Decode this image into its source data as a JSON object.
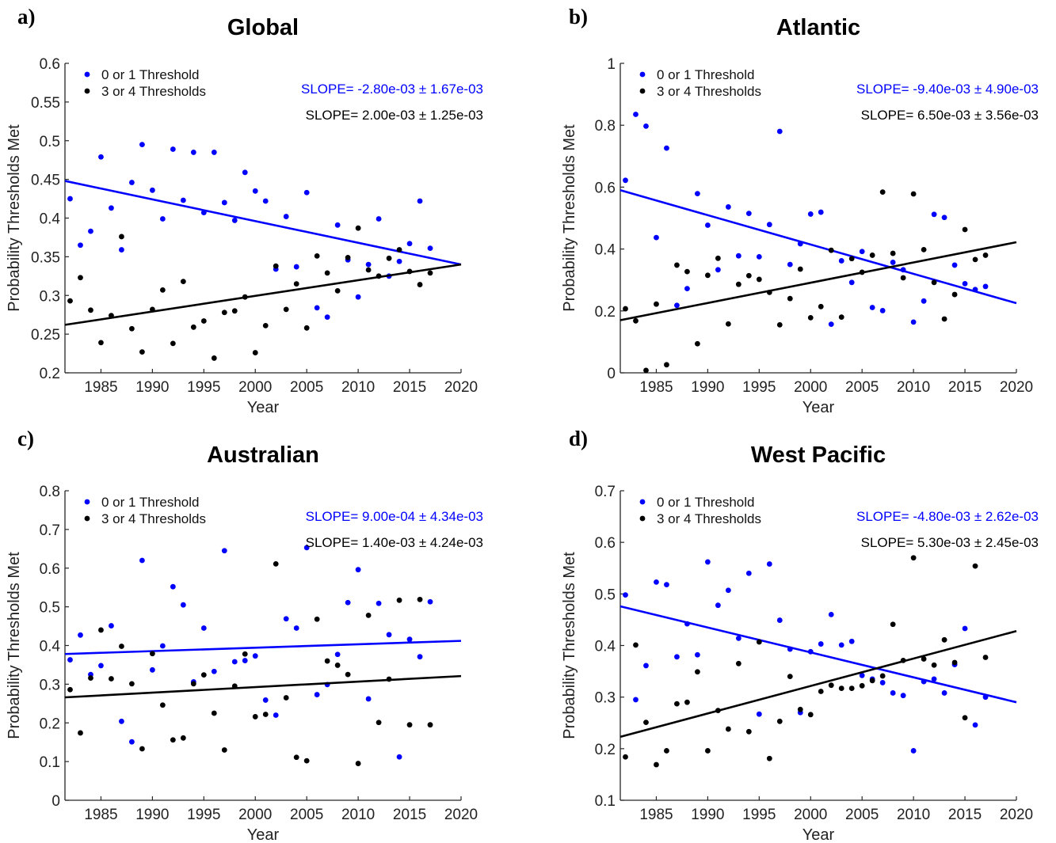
{
  "colors": {
    "blue": "#0000ff",
    "black": "#000000",
    "axis": "#262626",
    "tick_text": "#222222"
  },
  "chart_data": [
    {
      "type": "scatter",
      "panel_label": "a)",
      "title": "Global",
      "xlabel": "Year",
      "ylabel": "Probability Thresholds Met",
      "xlim": [
        1981.5,
        2020
      ],
      "ylim": [
        0.2,
        0.6
      ],
      "xticks": [
        1985,
        1990,
        1995,
        2000,
        2005,
        2010,
        2015,
        2020
      ],
      "yticks": [
        0.2,
        0.25,
        0.3,
        0.35,
        0.4,
        0.45,
        0.5,
        0.55,
        0.6
      ],
      "ytick_labels": [
        "0.2",
        "0.25",
        "0.3",
        "0.35",
        "0.4",
        "0.45",
        "0.5",
        "0.55",
        "0.6"
      ],
      "grid": false,
      "legend_position": "top-left",
      "series": [
        {
          "name": "0 or 1 Threshold",
          "color": "#0000ff",
          "slope_text": "SLOPE= -2.80e-03 ± 1.67e-03",
          "trend": {
            "x": [
              1981.5,
              2020
            ],
            "y": [
              0.448,
              0.34
            ]
          },
          "x": [
            1982,
            1983,
            1984,
            1985,
            1986,
            1987,
            1988,
            1989,
            1990,
            1991,
            1992,
            1993,
            1994,
            1995,
            1996,
            1997,
            1998,
            1999,
            2000,
            2001,
            2002,
            2003,
            2004,
            2005,
            2006,
            2007,
            2008,
            2009,
            2010,
            2011,
            2012,
            2013,
            2014,
            2015,
            2016,
            2017
          ],
          "y": [
            0.425,
            0.365,
            0.383,
            0.479,
            0.413,
            0.359,
            0.446,
            0.495,
            0.436,
            0.399,
            0.489,
            0.423,
            0.485,
            0.407,
            0.485,
            0.42,
            0.397,
            0.459,
            0.435,
            0.422,
            0.334,
            0.402,
            0.337,
            0.433,
            0.284,
            0.272,
            0.391,
            0.346,
            0.298,
            0.34,
            0.399,
            0.325,
            0.344,
            0.367,
            0.422,
            0.361
          ]
        },
        {
          "name": "3 or 4 Thresholds",
          "color": "#000000",
          "slope_text": "SLOPE= 2.00e-03 ± 1.25e-03",
          "trend": {
            "x": [
              1981.5,
              2020
            ],
            "y": [
              0.262,
              0.34
            ]
          },
          "x": [
            1982,
            1983,
            1984,
            1985,
            1986,
            1987,
            1988,
            1989,
            1990,
            1991,
            1992,
            1993,
            1994,
            1995,
            1996,
            1997,
            1998,
            1999,
            2000,
            2001,
            2002,
            2003,
            2004,
            2005,
            2006,
            2007,
            2008,
            2009,
            2010,
            2011,
            2012,
            2013,
            2014,
            2015,
            2016,
            2017
          ],
          "y": [
            0.293,
            0.323,
            0.281,
            0.239,
            0.274,
            0.376,
            0.257,
            0.227,
            0.282,
            0.307,
            0.238,
            0.318,
            0.259,
            0.267,
            0.219,
            0.278,
            0.28,
            0.298,
            0.226,
            0.261,
            0.338,
            0.282,
            0.315,
            0.258,
            0.351,
            0.329,
            0.306,
            0.349,
            0.387,
            0.333,
            0.325,
            0.348,
            0.359,
            0.331,
            0.314,
            0.329
          ]
        }
      ]
    },
    {
      "type": "scatter",
      "panel_label": "b)",
      "title": "Atlantic",
      "xlabel": "Year",
      "ylabel": "Probability Thresholds Met",
      "xlim": [
        1981.5,
        2020
      ],
      "ylim": [
        0,
        1
      ],
      "xticks": [
        1985,
        1990,
        1995,
        2000,
        2005,
        2010,
        2015,
        2020
      ],
      "yticks": [
        0,
        0.2,
        0.4,
        0.6,
        0.8,
        1
      ],
      "ytick_labels": [
        "0",
        "0.2",
        "0.4",
        "0.6",
        "0.8",
        "1"
      ],
      "grid": false,
      "legend_position": "top-left",
      "series": [
        {
          "name": "0 or 1 Threshold",
          "color": "#0000ff",
          "slope_text": "SLOPE= -9.40e-03 ± 4.90e-03",
          "trend": {
            "x": [
              1981.5,
              2020
            ],
            "y": [
              0.59,
              0.225
            ]
          },
          "x": [
            1982,
            1983,
            1984,
            1985,
            1986,
            1987,
            1988,
            1989,
            1990,
            1991,
            1992,
            1993,
            1994,
            1995,
            1996,
            1997,
            1998,
            1999,
            2000,
            2001,
            2002,
            2003,
            2004,
            2005,
            2006,
            2007,
            2008,
            2009,
            2010,
            2011,
            2012,
            2013,
            2014,
            2015,
            2016,
            2017
          ],
          "y": [
            0.622,
            0.835,
            0.797,
            0.437,
            0.726,
            0.218,
            0.272,
            0.579,
            0.477,
            0.333,
            0.536,
            0.378,
            0.515,
            0.375,
            0.479,
            0.78,
            0.35,
            0.417,
            0.513,
            0.519,
            0.157,
            0.362,
            0.292,
            0.392,
            0.211,
            0.201,
            0.357,
            0.333,
            0.164,
            0.232,
            0.512,
            0.502,
            0.348,
            0.288,
            0.269,
            0.279
          ]
        },
        {
          "name": "3 or 4 Thresholds",
          "color": "#000000",
          "slope_text": "SLOPE= 6.50e-03 ± 3.56e-03",
          "trend": {
            "x": [
              1981.5,
              2020
            ],
            "y": [
              0.17,
              0.422
            ]
          },
          "x": [
            1982,
            1983,
            1984,
            1985,
            1986,
            1987,
            1988,
            1989,
            1990,
            1991,
            1992,
            1993,
            1994,
            1995,
            1996,
            1997,
            1998,
            1999,
            2000,
            2001,
            2002,
            2003,
            2004,
            2005,
            2006,
            2007,
            2008,
            2009,
            2010,
            2011,
            2012,
            2013,
            2014,
            2015,
            2016,
            2017
          ],
          "y": [
            0.207,
            0.168,
            0.008,
            0.222,
            0.026,
            0.348,
            0.327,
            0.094,
            0.315,
            0.37,
            0.158,
            0.286,
            0.314,
            0.302,
            0.26,
            0.155,
            0.24,
            0.335,
            0.178,
            0.214,
            0.396,
            0.18,
            0.369,
            0.325,
            0.38,
            0.584,
            0.386,
            0.307,
            0.578,
            0.398,
            0.292,
            0.174,
            0.253,
            0.463,
            0.366,
            0.38
          ]
        }
      ]
    },
    {
      "type": "scatter",
      "panel_label": "c)",
      "title": "Australian",
      "xlabel": "Year",
      "ylabel": "Probability Thresholds Met",
      "xlim": [
        1981.5,
        2020
      ],
      "ylim": [
        0,
        0.8
      ],
      "xticks": [
        1985,
        1990,
        1995,
        2000,
        2005,
        2010,
        2015,
        2020
      ],
      "yticks": [
        0,
        0.1,
        0.2,
        0.3,
        0.4,
        0.5,
        0.6,
        0.7,
        0.8
      ],
      "ytick_labels": [
        "0",
        "0.1",
        "0.2",
        "0.3",
        "0.4",
        "0.5",
        "0.6",
        "0.7",
        "0.8"
      ],
      "grid": false,
      "legend_position": "top-left",
      "series": [
        {
          "name": "0 or 1 Threshold",
          "color": "#0000ff",
          "slope_text": "SLOPE= 9.00e-04 ± 4.34e-03",
          "trend": {
            "x": [
              1981.5,
              2020
            ],
            "y": [
              0.378,
              0.412
            ]
          },
          "x": [
            1982,
            1983,
            1984,
            1985,
            1986,
            1987,
            1988,
            1989,
            1990,
            1991,
            1992,
            1993,
            1994,
            1995,
            1996,
            1997,
            1998,
            1999,
            2000,
            2001,
            2002,
            2003,
            2004,
            2005,
            2006,
            2007,
            2008,
            2009,
            2010,
            2011,
            2012,
            2013,
            2014,
            2015,
            2016,
            2017
          ],
          "y": [
            0.363,
            0.427,
            0.325,
            0.348,
            0.451,
            0.204,
            0.151,
            0.62,
            0.337,
            0.399,
            0.552,
            0.505,
            0.306,
            0.445,
            0.333,
            0.645,
            0.358,
            0.361,
            0.373,
            0.259,
            0.22,
            0.469,
            0.445,
            0.653,
            0.273,
            0.299,
            0.377,
            0.511,
            0.596,
            0.262,
            0.509,
            0.428,
            0.112,
            0.416,
            0.371,
            0.513
          ]
        },
        {
          "name": "3 or 4 Thresholds",
          "color": "#000000",
          "slope_text": "SLOPE= 1.40e-03 ± 4.24e-03",
          "trend": {
            "x": [
              1981.5,
              2020
            ],
            "y": [
              0.266,
              0.321
            ]
          },
          "x": [
            1982,
            1983,
            1984,
            1985,
            1986,
            1987,
            1988,
            1989,
            1990,
            1991,
            1992,
            1993,
            1994,
            1995,
            1996,
            1997,
            1998,
            1999,
            2000,
            2001,
            2002,
            2003,
            2004,
            2005,
            2006,
            2007,
            2008,
            2009,
            2010,
            2011,
            2012,
            2013,
            2014,
            2015,
            2016,
            2017
          ],
          "y": [
            0.286,
            0.174,
            0.316,
            0.44,
            0.314,
            0.398,
            0.301,
            0.133,
            0.379,
            0.246,
            0.156,
            0.161,
            0.301,
            0.324,
            0.225,
            0.13,
            0.295,
            0.378,
            0.216,
            0.222,
            0.611,
            0.265,
            0.111,
            0.102,
            0.468,
            0.36,
            0.349,
            0.325,
            0.095,
            0.478,
            0.201,
            0.313,
            0.517,
            0.195,
            0.519,
            0.195
          ]
        }
      ]
    },
    {
      "type": "scatter",
      "panel_label": "d)",
      "title": "West Pacific",
      "xlabel": "Year",
      "ylabel": "Probability Thresholds Met",
      "xlim": [
        1981.5,
        2020
      ],
      "ylim": [
        0.1,
        0.7
      ],
      "xticks": [
        1985,
        1990,
        1995,
        2000,
        2005,
        2010,
        2015,
        2020
      ],
      "yticks": [
        0.1,
        0.2,
        0.3,
        0.4,
        0.5,
        0.6,
        0.7
      ],
      "ytick_labels": [
        "0.1",
        "0.2",
        "0.3",
        "0.4",
        "0.5",
        "0.6",
        "0.7"
      ],
      "grid": false,
      "legend_position": "top-left",
      "series": [
        {
          "name": "0 or 1 Threshold",
          "color": "#0000ff",
          "slope_text": "SLOPE= -4.80e-03 ± 2.62e-03",
          "trend": {
            "x": [
              1981.5,
              2020
            ],
            "y": [
              0.476,
              0.29
            ]
          },
          "x": [
            1982,
            1983,
            1984,
            1985,
            1986,
            1987,
            1988,
            1989,
            1990,
            1991,
            1992,
            1993,
            1994,
            1995,
            1996,
            1997,
            1998,
            1999,
            2000,
            2001,
            2002,
            2003,
            2004,
            2005,
            2006,
            2007,
            2008,
            2009,
            2010,
            2011,
            2012,
            2013,
            2014,
            2015,
            2016,
            2017
          ],
          "y": [
            0.498,
            0.295,
            0.361,
            0.523,
            0.518,
            0.378,
            0.442,
            0.382,
            0.562,
            0.478,
            0.507,
            0.414,
            0.54,
            0.267,
            0.558,
            0.449,
            0.393,
            0.27,
            0.388,
            0.403,
            0.46,
            0.401,
            0.408,
            0.342,
            0.335,
            0.328,
            0.308,
            0.303,
            0.196,
            0.33,
            0.335,
            0.308,
            0.363,
            0.433,
            0.246,
            0.3
          ]
        },
        {
          "name": "3 or 4 Thresholds",
          "color": "#000000",
          "slope_text": "SLOPE= 5.30e-03 ± 2.45e-03",
          "trend": {
            "x": [
              1981.5,
              2020
            ],
            "y": [
              0.223,
              0.428
            ]
          },
          "x": [
            1982,
            1983,
            1984,
            1985,
            1986,
            1987,
            1988,
            1989,
            1990,
            1991,
            1992,
            1993,
            1994,
            1995,
            1996,
            1997,
            1998,
            1999,
            2000,
            2001,
            2002,
            2003,
            2004,
            2005,
            2006,
            2007,
            2008,
            2009,
            2010,
            2011,
            2012,
            2013,
            2014,
            2015,
            2016,
            2017
          ],
          "y": [
            0.184,
            0.401,
            0.251,
            0.169,
            0.196,
            0.287,
            0.29,
            0.349,
            0.196,
            0.274,
            0.238,
            0.365,
            0.233,
            0.407,
            0.181,
            0.253,
            0.34,
            0.276,
            0.266,
            0.311,
            0.323,
            0.317,
            0.317,
            0.322,
            0.332,
            0.341,
            0.441,
            0.371,
            0.57,
            0.374,
            0.362,
            0.411,
            0.367,
            0.26,
            0.554,
            0.377
          ]
        }
      ]
    }
  ]
}
